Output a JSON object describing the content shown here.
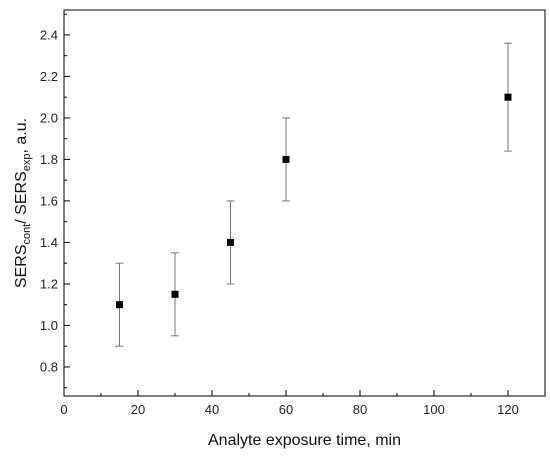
{
  "chart_data": {
    "type": "scatter",
    "xlabel": "Analyte exposure time, min",
    "ylabel": {
      "parts": [
        {
          "text": "SERS",
          "sub": false
        },
        {
          "text": "cont",
          "sub": true
        },
        {
          "text": "/ SERS",
          "sub": false
        },
        {
          "text": "exp",
          "sub": true
        },
        {
          "text": ", a.u.",
          "sub": false
        }
      ]
    },
    "xlim": [
      0,
      130
    ],
    "ylim": [
      0.66,
      2.52
    ],
    "x_ticks": [
      0,
      20,
      40,
      60,
      80,
      100,
      120
    ],
    "x_tick_labels": [
      "0",
      "20",
      "40",
      "60",
      "80",
      "100",
      "120"
    ],
    "y_ticks": [
      0.8,
      1.0,
      1.2,
      1.4,
      1.6,
      1.8,
      2.0,
      2.2,
      2.4
    ],
    "y_tick_labels": [
      "0.8",
      "1.0",
      "1.2",
      "1.4",
      "1.6",
      "1.8",
      "2.0",
      "2.2",
      "2.4"
    ],
    "grid": false,
    "legend": "none",
    "marker": "square",
    "marker_color": "#000000",
    "errorbar_color": "#777777",
    "points": [
      {
        "x": 15,
        "y": 1.1,
        "err_low": 0.9,
        "err_high": 1.3
      },
      {
        "x": 30,
        "y": 1.15,
        "err_low": 0.95,
        "err_high": 1.35
      },
      {
        "x": 45,
        "y": 1.4,
        "err_low": 1.2,
        "err_high": 1.6
      },
      {
        "x": 60,
        "y": 1.8,
        "err_low": 1.6,
        "err_high": 2.0
      },
      {
        "x": 120,
        "y": 2.1,
        "err_low": 1.84,
        "err_high": 2.36
      }
    ]
  }
}
